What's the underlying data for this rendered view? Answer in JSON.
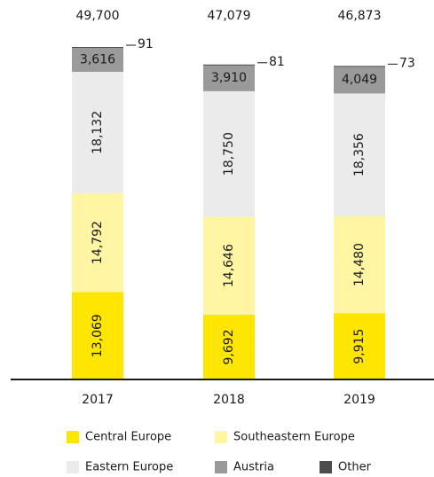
{
  "chart_data": {
    "type": "stacked-bar",
    "categories": [
      "2017",
      "2018",
      "2019"
    ],
    "series": [
      {
        "name": "Central Europe",
        "color": "#ffe600",
        "values": [
          13069,
          9692,
          9915
        ],
        "value_labels": [
          "13,069",
          "9,692",
          "9,915"
        ]
      },
      {
        "name": "Southeastern Europe",
        "color": "#fff5a3",
        "values": [
          14792,
          14646,
          14480
        ],
        "value_labels": [
          "14,792",
          "14,646",
          "14,480"
        ]
      },
      {
        "name": "Eastern Europe",
        "color": "#ebebeb",
        "values": [
          18132,
          18750,
          18356
        ],
        "value_labels": [
          "18,132",
          "18,750",
          "18,356"
        ]
      },
      {
        "name": "Austria",
        "color": "#9a9a9a",
        "values": [
          3616,
          3910,
          4049
        ],
        "value_labels": [
          "3,616",
          "3,910",
          "4,049"
        ]
      },
      {
        "name": "Other",
        "color": "#4d4d4d",
        "values": [
          91,
          81,
          73
        ]
      }
    ],
    "totals": {
      "values": [
        49700,
        47079,
        46873
      ],
      "value_labels": [
        "49,700",
        "47,079",
        "46,873"
      ]
    }
  }
}
